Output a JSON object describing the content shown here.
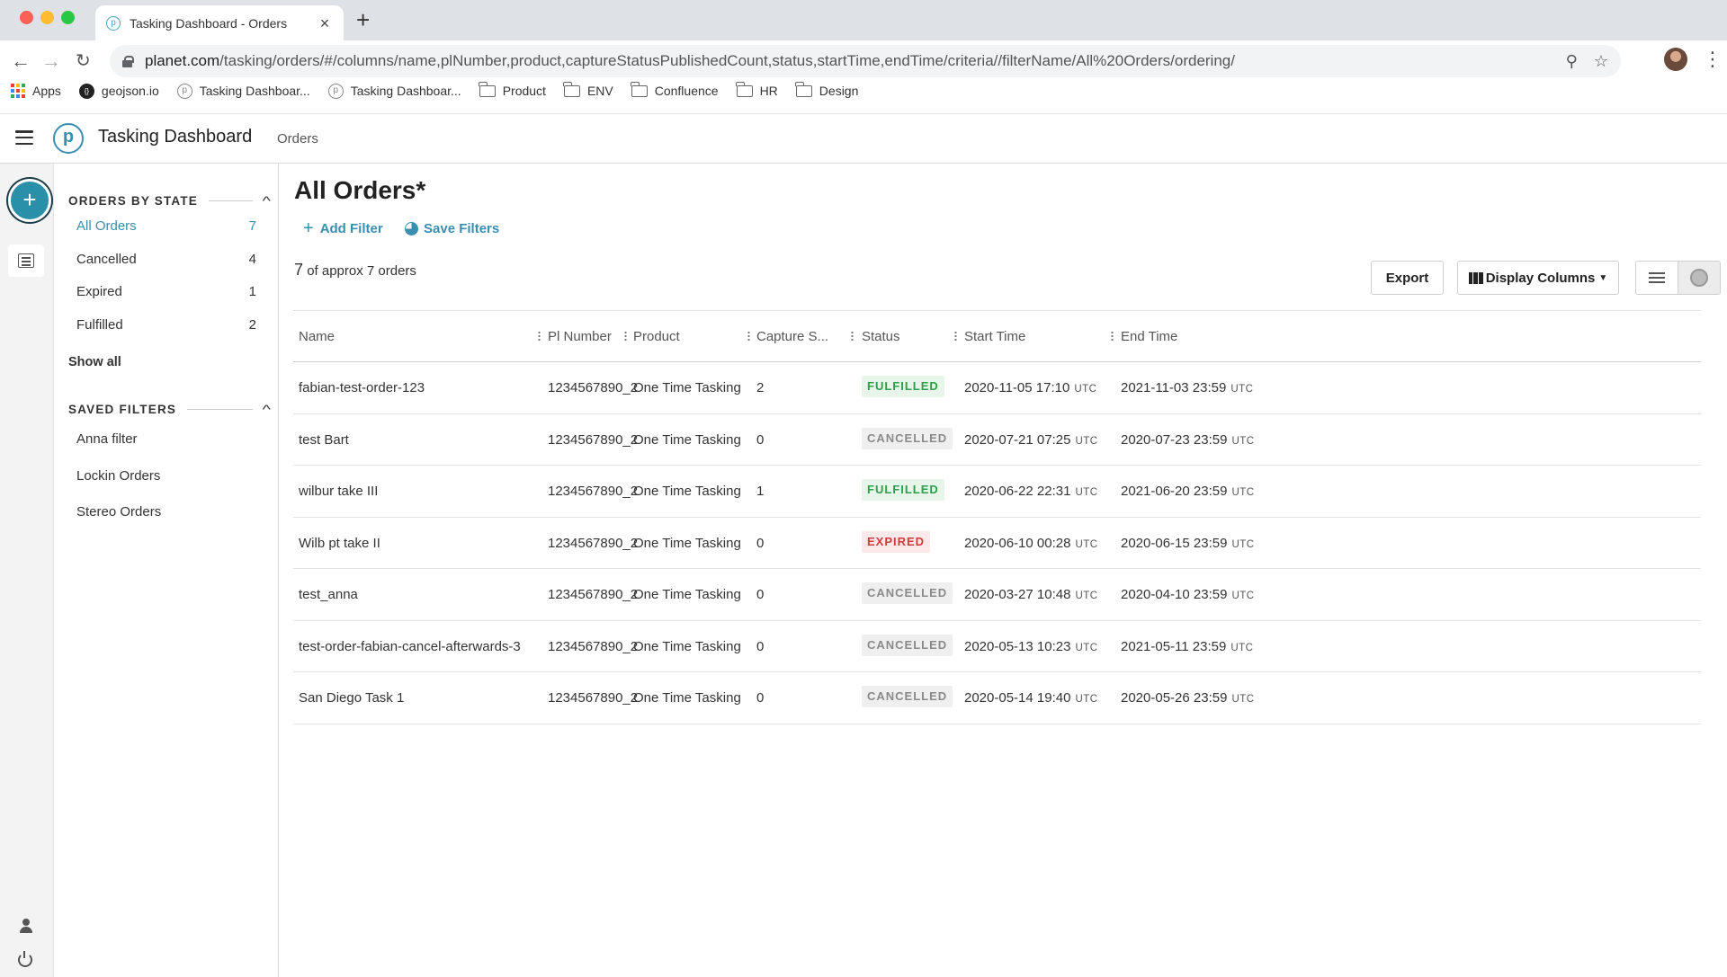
{
  "browser": {
    "tab_title": "Tasking Dashboard - Orders",
    "tab_favicon": "p",
    "url_domain": "planet.com",
    "url_path": "/tasking/orders/#/columns/name,plNumber,product,captureStatusPublishedCount,status,startTime,endTime/criteria//filterName/All%20Orders/ordering/",
    "bookmarks": [
      {
        "label": "Apps",
        "icon": "apps-grid-icon"
      },
      {
        "label": "geojson.io",
        "icon": "geojson-icon"
      },
      {
        "label": "Tasking Dashboar...",
        "icon": "planet-p-icon"
      },
      {
        "label": "Tasking Dashboar...",
        "icon": "planet-p-icon"
      },
      {
        "label": "Product",
        "icon": "folder-icon"
      },
      {
        "label": "ENV",
        "icon": "folder-icon"
      },
      {
        "label": "Confluence",
        "icon": "folder-icon"
      },
      {
        "label": "HR",
        "icon": "folder-icon"
      },
      {
        "label": "Design",
        "icon": "folder-icon"
      }
    ]
  },
  "header": {
    "logo": "p",
    "app_title": "Tasking Dashboard",
    "breadcrumb": "Orders"
  },
  "sidebar": {
    "orders_by_state_title": "ORDERS BY STATE",
    "states": [
      {
        "label": "All Orders",
        "count": "7",
        "active": true
      },
      {
        "label": "Cancelled",
        "count": "4",
        "active": false
      },
      {
        "label": "Expired",
        "count": "1",
        "active": false
      },
      {
        "label": "Fulfilled",
        "count": "2",
        "active": false
      }
    ],
    "show_all": "Show all",
    "saved_filters_title": "SAVED FILTERS",
    "saved_filters": [
      "Anna filter",
      "Lockin Orders",
      "Stereo Orders"
    ]
  },
  "main": {
    "title": "All Orders*",
    "add_filter": "Add Filter",
    "save_filters": "Save Filters",
    "count_number": "7",
    "count_text": "of approx 7 orders",
    "export_label": "Export",
    "display_columns_label": "Display Columns",
    "columns": [
      "Name",
      "Pl Number",
      "Product",
      "Capture S...",
      "Status",
      "Start Time",
      "End Time"
    ],
    "utc_label": "UTC",
    "rows": [
      {
        "name": "fabian-test-order-123",
        "pl": "1234567890_2",
        "product": "One Time Tasking",
        "capture": "2",
        "status": "FULFILLED",
        "start": "2020-11-05 17:10",
        "end": "2021-11-03 23:59"
      },
      {
        "name": "test Bart",
        "pl": "1234567890_2",
        "product": "One Time Tasking",
        "capture": "0",
        "status": "CANCELLED",
        "start": "2020-07-21 07:25",
        "end": "2020-07-23 23:59"
      },
      {
        "name": "wilbur take III",
        "pl": "1234567890_2",
        "product": "One Time Tasking",
        "capture": "1",
        "status": "FULFILLED",
        "start": "2020-06-22 22:31",
        "end": "2021-06-20 23:59"
      },
      {
        "name": "Wilb pt take II",
        "pl": "1234567890_2",
        "product": "One Time Tasking",
        "capture": "0",
        "status": "EXPIRED",
        "start": "2020-06-10 00:28",
        "end": "2020-06-15 23:59"
      },
      {
        "name": "test_anna",
        "pl": "1234567890_2",
        "product": "One Time Tasking",
        "capture": "0",
        "status": "CANCELLED",
        "start": "2020-03-27 10:48",
        "end": "2020-04-10 23:59"
      },
      {
        "name": "test-order-fabian-cancel-afterwards-3",
        "pl": "1234567890_2",
        "product": "One Time Tasking",
        "capture": "0",
        "status": "CANCELLED",
        "start": "2020-05-13 10:23",
        "end": "2021-05-11 23:59"
      },
      {
        "name": "San Diego Task 1",
        "pl": "1234567890_2",
        "product": "One Time Tasking",
        "capture": "0",
        "status": "CANCELLED",
        "start": "2020-05-14 19:40",
        "end": "2020-05-26 23:59"
      }
    ]
  },
  "colors": {
    "accent": "#3a8fb0",
    "fulfilled": "#2e9e4a",
    "cancelled": "#8a8a8a",
    "expired": "#d23b3b"
  }
}
